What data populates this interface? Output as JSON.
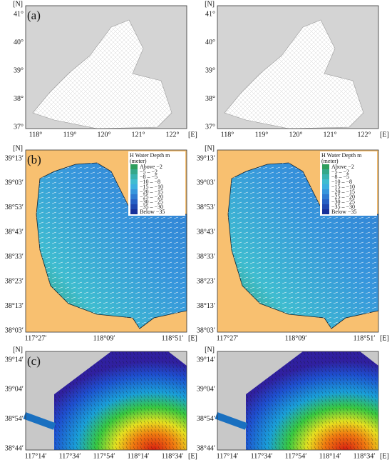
{
  "panels": [
    {
      "label": "(a)",
      "y_unit": "[N]",
      "x_unit": "[E]",
      "yticks": [
        "41°",
        "40°",
        "39°",
        "38°",
        "37°"
      ],
      "xticks": [
        "118°",
        "119°",
        "120°",
        "121°",
        "122°"
      ]
    },
    {
      "label": "(b)",
      "y_unit": "[N]",
      "x_unit": "[E]",
      "yticks": [
        "39°13′",
        "39°03′",
        "38°53′",
        "38°43′",
        "38°33′",
        "38°23′",
        "38°13′",
        "38°03′"
      ],
      "xticks": [
        "117°27′",
        "118°09′",
        "118°51′"
      ],
      "legend": {
        "title": "H Water Depth m",
        "subtitle": "(meter)",
        "entries": [
          {
            "label": "Above −2",
            "color": "#2e9e5e"
          },
          {
            "label": "−5 – −2",
            "color": "#35a88a"
          },
          {
            "label": "−8 – −5",
            "color": "#3ab3b0"
          },
          {
            "label": "−10 – −8",
            "color": "#3fbcd0"
          },
          {
            "label": "−15 – −10",
            "color": "#3cb0e0"
          },
          {
            "label": "−20 – −15",
            "color": "#3796dc"
          },
          {
            "label": "−25 – −20",
            "color": "#2f7bd2"
          },
          {
            "label": "−30 – −25",
            "color": "#2760c4"
          },
          {
            "label": "−35 – −30",
            "color": "#1f47b0"
          },
          {
            "label": "Below −35",
            "color": "#17309a"
          }
        ]
      }
    },
    {
      "label": "(c)",
      "y_unit": "[N]",
      "x_unit": "[E]",
      "yticks": [
        "39°14′",
        "39°04′",
        "38°54′",
        "38°44′"
      ],
      "xticks": [
        "117°14′",
        "117°34′",
        "117°54′",
        "118°14′",
        "118°34′"
      ]
    }
  ]
}
